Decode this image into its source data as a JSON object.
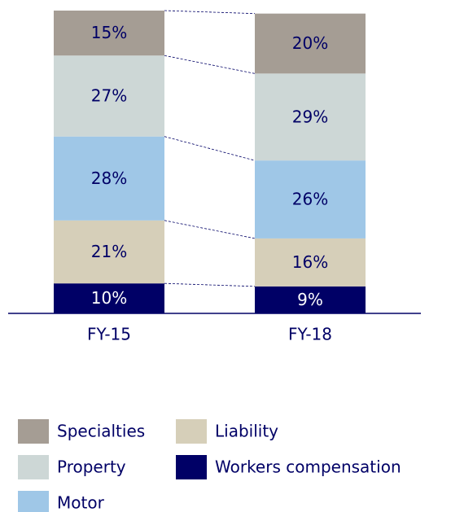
{
  "chart_data": {
    "type": "stacked_bar",
    "categories": [
      "FY-15",
      "FY-18"
    ],
    "series": [
      {
        "name": "Specialties",
        "color": "#a59d94",
        "values": [
          15,
          20
        ],
        "value_labels": [
          "15%",
          "20%"
        ]
      },
      {
        "name": "Property",
        "color": "#cdd7d6",
        "values": [
          27,
          29
        ],
        "value_labels": [
          "27%",
          "29%"
        ]
      },
      {
        "name": "Motor",
        "color": "#9fc7e7",
        "values": [
          28,
          26
        ],
        "value_labels": [
          "28%",
          "26%"
        ]
      },
      {
        "name": "Liability",
        "color": "#d6cfb9",
        "values": [
          21,
          16
        ],
        "value_labels": [
          "21%",
          "16%"
        ]
      },
      {
        "name": "Workers compensation",
        "color": "#000066",
        "values": [
          10,
          9
        ],
        "value_labels": [
          "10%",
          "9%"
        ]
      }
    ],
    "ylim": [
      0,
      101
    ]
  }
}
